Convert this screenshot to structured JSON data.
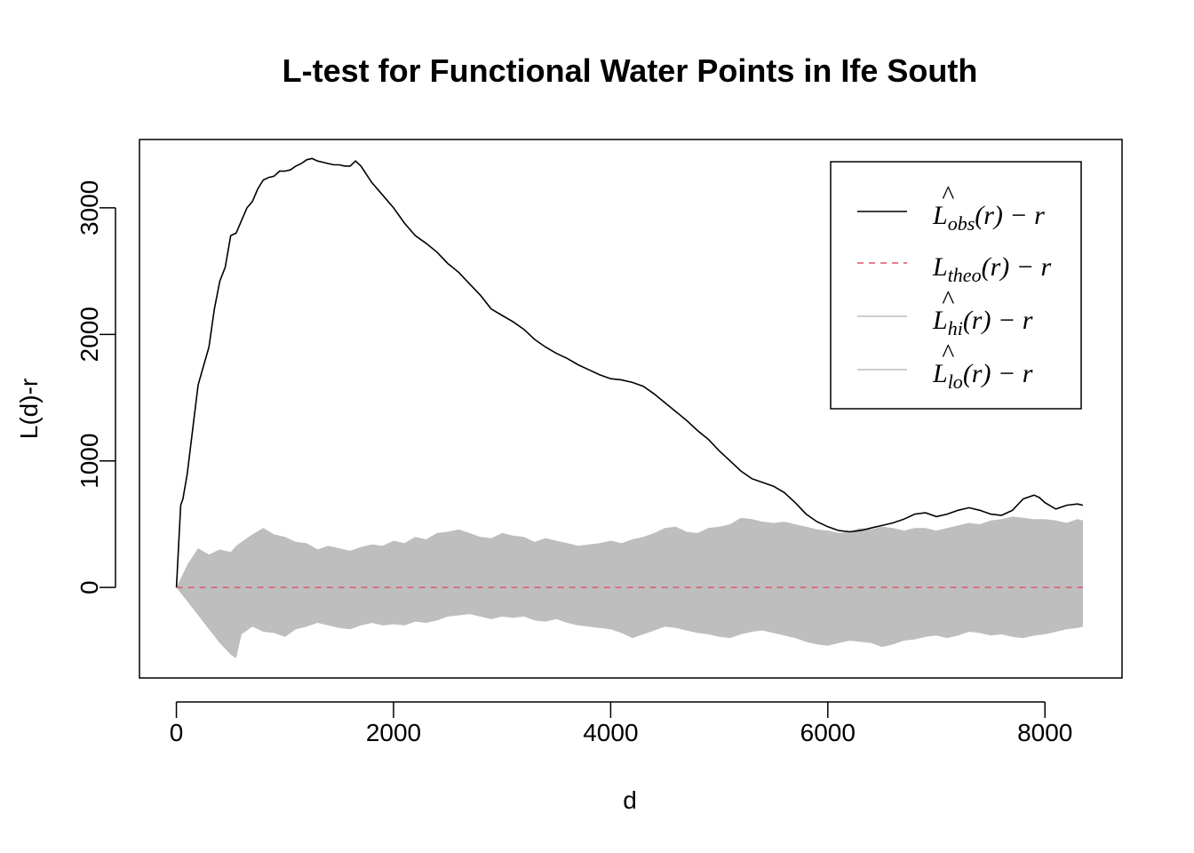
{
  "chart_data": {
    "type": "line",
    "title": "L-test for Functional Water Points in Ife South",
    "xlabel": "d",
    "ylabel": "L(d)-r",
    "xlim": [
      -340,
      8710
    ],
    "ylim": [
      -715,
      3540
    ],
    "x_ticks": [
      0,
      2000,
      4000,
      6000,
      8000
    ],
    "y_ticks": [
      0,
      1000,
      2000,
      3000
    ],
    "legend_position": "top-right",
    "legend": [
      {
        "main": "L",
        "hat": true,
        "sub": "obs",
        "tail": "(r) − r",
        "color": "#000000",
        "dash": "solid"
      },
      {
        "main": "L",
        "hat": false,
        "sub": "theo",
        "tail": "(r) − r",
        "color": "#DF536B",
        "dash": "dashed"
      },
      {
        "main": "L",
        "hat": true,
        "sub": "hi",
        "tail": "(r) − r",
        "color": "#BEBEBE",
        "dash": "solid"
      },
      {
        "main": "L",
        "hat": true,
        "sub": "lo",
        "tail": "(r) − r",
        "color": "#BEBEBE",
        "dash": "solid"
      }
    ],
    "series": [
      {
        "name": "obs",
        "color": "#000000",
        "x": [
          0,
          40,
          60,
          100,
          150,
          200,
          250,
          300,
          350,
          400,
          450,
          500,
          550,
          600,
          650,
          700,
          750,
          800,
          850,
          900,
          950,
          1000,
          1050,
          1100,
          1150,
          1200,
          1250,
          1300,
          1350,
          1400,
          1450,
          1500,
          1550,
          1600,
          1650,
          1700,
          1800,
          1900,
          2000,
          2100,
          2200,
          2300,
          2400,
          2500,
          2600,
          2700,
          2800,
          2900,
          3000,
          3100,
          3200,
          3300,
          3400,
          3500,
          3600,
          3700,
          3800,
          3900,
          4000,
          4100,
          4200,
          4300,
          4400,
          4500,
          4600,
          4700,
          4800,
          4900,
          5000,
          5100,
          5200,
          5300,
          5400,
          5500,
          5600,
          5700,
          5800,
          5900,
          6000,
          6100,
          6200,
          6300,
          6400,
          6500,
          6600,
          6700,
          6800,
          6900,
          7000,
          7100,
          7200,
          7300,
          7400,
          7500,
          7600,
          7700,
          7800,
          7900,
          7950,
          8000,
          8100,
          8200,
          8300,
          8350
        ],
        "y": [
          0,
          650,
          700,
          900,
          1250,
          1600,
          1750,
          1900,
          2200,
          2420,
          2530,
          2780,
          2800,
          2900,
          3000,
          3050,
          3150,
          3220,
          3240,
          3250,
          3290,
          3290,
          3300,
          3330,
          3350,
          3380,
          3390,
          3370,
          3360,
          3350,
          3340,
          3340,
          3330,
          3330,
          3370,
          3330,
          3200,
          3100,
          3000,
          2880,
          2780,
          2720,
          2650,
          2560,
          2490,
          2400,
          2310,
          2200,
          2150,
          2100,
          2040,
          1960,
          1900,
          1850,
          1810,
          1760,
          1720,
          1680,
          1650,
          1640,
          1620,
          1590,
          1530,
          1460,
          1390,
          1320,
          1240,
          1170,
          1080,
          1000,
          920,
          860,
          830,
          800,
          750,
          670,
          580,
          520,
          480,
          450,
          440,
          450,
          470,
          490,
          510,
          540,
          580,
          590,
          560,
          580,
          610,
          630,
          610,
          580,
          570,
          610,
          700,
          730,
          710,
          670,
          620,
          650,
          660,
          650
        ]
      },
      {
        "name": "theo",
        "color": "#DF536B",
        "x": [
          0,
          8350
        ],
        "y": [
          0,
          0
        ]
      }
    ],
    "envelope": {
      "color": "#BEBEBE",
      "x": [
        0,
        100,
        200,
        300,
        400,
        500,
        550,
        600,
        700,
        800,
        900,
        1000,
        1100,
        1200,
        1300,
        1400,
        1500,
        1600,
        1700,
        1800,
        1900,
        2000,
        2100,
        2200,
        2300,
        2400,
        2500,
        2600,
        2700,
        2800,
        2900,
        3000,
        3100,
        3200,
        3300,
        3400,
        3500,
        3600,
        3700,
        3800,
        3900,
        4000,
        4100,
        4200,
        4300,
        4400,
        4500,
        4600,
        4700,
        4800,
        4900,
        5000,
        5100,
        5200,
        5300,
        5400,
        5500,
        5600,
        5700,
        5800,
        5900,
        6000,
        6100,
        6200,
        6300,
        6400,
        6500,
        6600,
        6700,
        6800,
        6900,
        7000,
        7100,
        7200,
        7300,
        7400,
        7500,
        7600,
        7700,
        7800,
        7900,
        8000,
        8100,
        8200,
        8300,
        8350
      ],
      "hi": [
        0,
        180,
        310,
        260,
        300,
        280,
        330,
        360,
        420,
        470,
        420,
        400,
        360,
        350,
        300,
        330,
        310,
        290,
        320,
        340,
        330,
        370,
        350,
        400,
        380,
        430,
        440,
        460,
        430,
        400,
        390,
        430,
        410,
        400,
        360,
        390,
        370,
        350,
        330,
        340,
        350,
        370,
        350,
        380,
        400,
        430,
        470,
        480,
        440,
        430,
        470,
        480,
        500,
        550,
        540,
        520,
        510,
        520,
        500,
        480,
        460,
        450,
        430,
        440,
        470,
        460,
        480,
        470,
        450,
        470,
        470,
        450,
        470,
        490,
        510,
        500,
        530,
        540,
        560,
        550,
        540,
        540,
        530,
        510,
        540,
        530
      ],
      "lo": [
        0,
        -110,
        -220,
        -330,
        -440,
        -530,
        -560,
        -370,
        -310,
        -350,
        -360,
        -390,
        -330,
        -310,
        -280,
        -300,
        -320,
        -330,
        -300,
        -280,
        -300,
        -290,
        -300,
        -270,
        -280,
        -260,
        -230,
        -220,
        -210,
        -230,
        -250,
        -230,
        -240,
        -230,
        -260,
        -270,
        -250,
        -280,
        -300,
        -310,
        -320,
        -330,
        -360,
        -400,
        -370,
        -340,
        -310,
        -320,
        -340,
        -360,
        -370,
        -390,
        -400,
        -370,
        -350,
        -340,
        -360,
        -380,
        -400,
        -430,
        -450,
        -460,
        -440,
        -420,
        -430,
        -440,
        -470,
        -450,
        -420,
        -410,
        -390,
        -380,
        -400,
        -380,
        -350,
        -360,
        -380,
        -370,
        -390,
        -400,
        -380,
        -370,
        -350,
        -330,
        -320,
        -310
      ]
    }
  }
}
